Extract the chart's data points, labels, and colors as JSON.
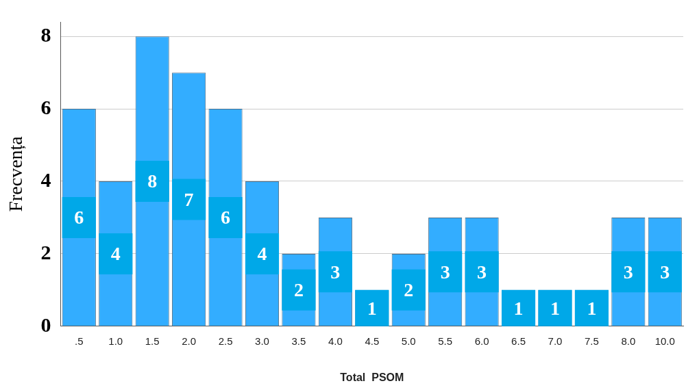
{
  "chart_data": {
    "type": "bar",
    "xlabel": "Total  PSOM",
    "ylabel": "Frecvența",
    "categories": [
      ".5",
      "1.0",
      "1.5",
      "2.0",
      "2.5",
      "3.0",
      "3.5",
      "4.0",
      "4.5",
      "5.0",
      "5.5",
      "6.0",
      "6.5",
      "7.0",
      "7.5",
      "8.0",
      "10.0"
    ],
    "values": [
      6,
      4,
      8,
      7,
      6,
      4,
      2,
      3,
      1,
      2,
      3,
      3,
      1,
      1,
      1,
      3,
      3
    ],
    "color": "#33adff",
    "ylim": [
      0,
      8.4
    ],
    "yticks": [
      0,
      2,
      4,
      6,
      8
    ],
    "grid": "y",
    "data_labels": true
  }
}
